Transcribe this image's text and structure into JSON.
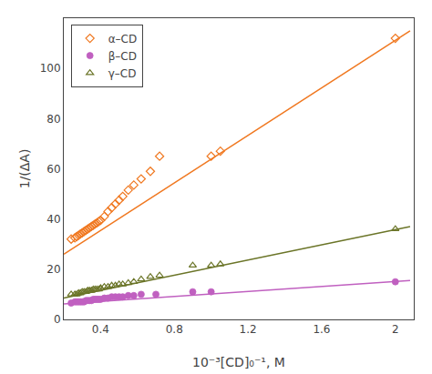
{
  "chart_data": {
    "type": "scatter",
    "xlabel": "10⁻³[CD]₀⁻¹, M",
    "ylabel": "1/(ΔA)",
    "xlim": [
      0.2,
      2.1
    ],
    "ylim": [
      0,
      120
    ],
    "xticks": [
      0.4,
      0.8,
      1.2,
      1.6,
      2.0
    ],
    "yticks": [
      0,
      20,
      40,
      60,
      80,
      100
    ],
    "grid": false,
    "legend": "upper left",
    "series": [
      {
        "type": "line",
        "color": "#F07820",
        "line_style": "solid",
        "x": [
          0.2,
          2.08
        ],
        "values": [
          26.0,
          115.0
        ]
      },
      {
        "type": "line",
        "color": "#C060C0",
        "line_style": "solid",
        "x": [
          0.2,
          2.08
        ],
        "values": [
          6.2,
          15.5
        ]
      },
      {
        "type": "line",
        "color": "#6B7528",
        "line_style": "solid",
        "x": [
          0.2,
          2.08
        ],
        "values": [
          8.5,
          37.0
        ]
      },
      {
        "type": "scatter",
        "name": "α–CD",
        "color": "#F07820",
        "marker": "diamond-open",
        "x": [
          0.24,
          0.26,
          0.27,
          0.28,
          0.29,
          0.3,
          0.31,
          0.32,
          0.33,
          0.34,
          0.35,
          0.36,
          0.37,
          0.38,
          0.39,
          0.4,
          0.42,
          0.44,
          0.46,
          0.48,
          0.5,
          0.52,
          0.55,
          0.58,
          0.62,
          0.67,
          0.72,
          1.0,
          1.05,
          2.0
        ],
        "values": [
          32.0,
          32.5,
          33.0,
          33.5,
          34.0,
          34.5,
          35.0,
          35.5,
          36.0,
          36.5,
          37.0,
          37.5,
          38.0,
          38.5,
          39.0,
          39.5,
          41.0,
          43.0,
          44.5,
          46.0,
          47.5,
          49.0,
          51.5,
          53.5,
          56.0,
          59.0,
          65.0,
          65.0,
          67.0,
          112.0
        ]
      },
      {
        "type": "scatter",
        "name": "β–CD",
        "color": "#C060C0",
        "marker": "circle",
        "x": [
          0.24,
          0.26,
          0.27,
          0.28,
          0.29,
          0.3,
          0.31,
          0.32,
          0.33,
          0.34,
          0.35,
          0.36,
          0.37,
          0.38,
          0.39,
          0.4,
          0.42,
          0.44,
          0.46,
          0.48,
          0.5,
          0.52,
          0.55,
          0.58,
          0.62,
          0.7,
          0.9,
          1.0,
          2.0
        ],
        "values": [
          6.5,
          7.0,
          7.0,
          7.0,
          7.0,
          7.0,
          7.0,
          7.5,
          7.5,
          7.5,
          7.5,
          8.0,
          8.0,
          8.0,
          8.0,
          8.0,
          8.5,
          8.5,
          9.0,
          9.0,
          9.0,
          9.0,
          9.5,
          9.5,
          10.0,
          10.0,
          11.0,
          11.0,
          15.0
        ]
      },
      {
        "type": "scatter",
        "name": "γ–CD",
        "color": "#6B7528",
        "marker": "triangle-up-open",
        "x": [
          0.24,
          0.26,
          0.27,
          0.28,
          0.29,
          0.3,
          0.31,
          0.32,
          0.33,
          0.34,
          0.35,
          0.36,
          0.37,
          0.38,
          0.39,
          0.4,
          0.42,
          0.44,
          0.46,
          0.48,
          0.5,
          0.52,
          0.55,
          0.58,
          0.62,
          0.67,
          0.72,
          0.9,
          1.0,
          1.05,
          2.0
        ],
        "values": [
          10.0,
          10.0,
          10.0,
          10.5,
          10.5,
          11.0,
          11.0,
          11.0,
          11.5,
          11.5,
          11.5,
          12.0,
          12.0,
          12.0,
          12.0,
          12.5,
          13.0,
          13.0,
          13.5,
          13.5,
          14.0,
          14.0,
          14.5,
          15.0,
          16.0,
          17.0,
          17.5,
          21.5,
          21.5,
          22.0,
          36.0
        ]
      }
    ]
  }
}
